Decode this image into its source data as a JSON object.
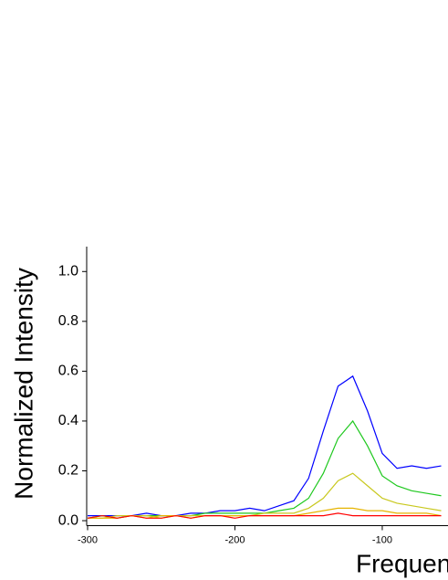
{
  "chart_data": {
    "type": "line",
    "y_label": "Normalized Intensity",
    "x_label": "Frequency",
    "xlim": [
      -300,
      -56
    ],
    "xticks": [
      -300,
      -200,
      -100
    ],
    "ylim": [
      -0.02,
      1.1
    ],
    "yticks": [
      {
        "value": 0,
        "label": "0.0"
      },
      0.2,
      0.4,
      0.6,
      0.8,
      {
        "value": 1,
        "label": "1.0"
      }
    ],
    "x": [
      -300,
      -290,
      -280,
      -270,
      -260,
      -250,
      -240,
      -230,
      -220,
      -210,
      -200,
      -190,
      -180,
      -170,
      -160,
      -150,
      -140,
      -130,
      -120,
      -110,
      -100,
      -90,
      -80,
      -70,
      -60
    ],
    "series": [
      {
        "color": "#0000ff",
        "values": [
          0.02,
          0.02,
          0.02,
          0.02,
          0.03,
          0.02,
          0.02,
          0.03,
          0.03,
          0.04,
          0.04,
          0.05,
          0.04,
          0.06,
          0.08,
          0.17,
          0.36,
          0.54,
          0.58,
          0.44,
          0.27,
          0.21,
          0.22,
          0.21,
          0.22
        ]
      },
      {
        "color": "#1ec81e",
        "values": [
          0.01,
          0.02,
          0.01,
          0.02,
          0.02,
          0.02,
          0.02,
          0.02,
          0.03,
          0.03,
          0.03,
          0.03,
          0.03,
          0.04,
          0.05,
          0.09,
          0.19,
          0.33,
          0.4,
          0.3,
          0.18,
          0.14,
          0.12,
          0.11,
          0.1
        ]
      },
      {
        "color": "#c8c81e",
        "values": [
          0.01,
          0.01,
          0.02,
          0.02,
          0.02,
          0.01,
          0.02,
          0.02,
          0.02,
          0.02,
          0.02,
          0.02,
          0.03,
          0.03,
          0.03,
          0.05,
          0.09,
          0.16,
          0.19,
          0.14,
          0.09,
          0.07,
          0.06,
          0.05,
          0.04
        ]
      },
      {
        "color": "#e6b400",
        "values": [
          0.01,
          0.01,
          0.01,
          0.02,
          0.01,
          0.02,
          0.02,
          0.01,
          0.02,
          0.02,
          0.02,
          0.02,
          0.02,
          0.02,
          0.02,
          0.03,
          0.04,
          0.05,
          0.05,
          0.04,
          0.04,
          0.03,
          0.03,
          0.03,
          0.02
        ]
      },
      {
        "color": "#ff0000",
        "values": [
          0.01,
          0.02,
          0.01,
          0.02,
          0.01,
          0.01,
          0.02,
          0.01,
          0.02,
          0.02,
          0.01,
          0.02,
          0.02,
          0.02,
          0.02,
          0.02,
          0.02,
          0.03,
          0.02,
          0.02,
          0.02,
          0.02,
          0.02,
          0.02,
          0.02
        ]
      }
    ]
  }
}
